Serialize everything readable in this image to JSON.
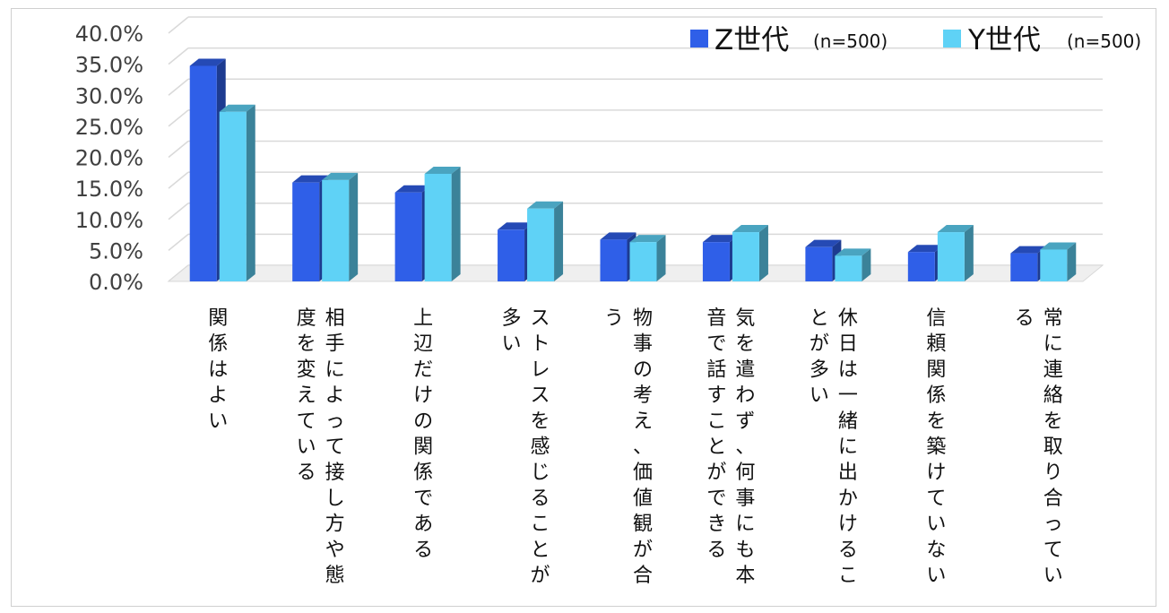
{
  "chart_data": {
    "type": "bar",
    "style": "3d-clustered-column",
    "categories": [
      [
        "関係はよい"
      ],
      [
        "相手によって接し方や態",
        "度を変えている"
      ],
      [
        "上辺だけの関係である"
      ],
      [
        "ストレスを感じることが",
        "多い"
      ],
      [
        "物事の考え、価値観が合",
        "う"
      ],
      [
        "気を遣わず、何事にも本",
        "音で話すことができる"
      ],
      [
        "休日は一緒に出かけるこ",
        "とが多い"
      ],
      [
        "信頼関係を築けていない"
      ],
      [
        "常に連絡を取り合ってい",
        "る"
      ]
    ],
    "series": [
      {
        "name": "Z世代",
        "name_suffix": "(n=500)",
        "color": "#2f5fe8",
        "values": [
          35.6,
          16.8,
          15.2,
          9.2,
          7.6,
          7.2,
          6.4,
          5.6,
          5.4
        ]
      },
      {
        "name": "Y世代",
        "name_suffix": "(n=500)",
        "color": "#5fd2f6",
        "values": [
          28.2,
          17.2,
          18.2,
          12.6,
          7.2,
          8.8,
          5.0,
          8.8,
          6.0
        ]
      }
    ],
    "ylim": [
      0,
      40
    ],
    "yticks": [
      "0.0%",
      "5.0%",
      "10.0%",
      "15.0%",
      "20.0%",
      "25.0%",
      "30.0%",
      "35.0%",
      "40.0%"
    ],
    "grid": true,
    "legend_position": "top-right"
  }
}
